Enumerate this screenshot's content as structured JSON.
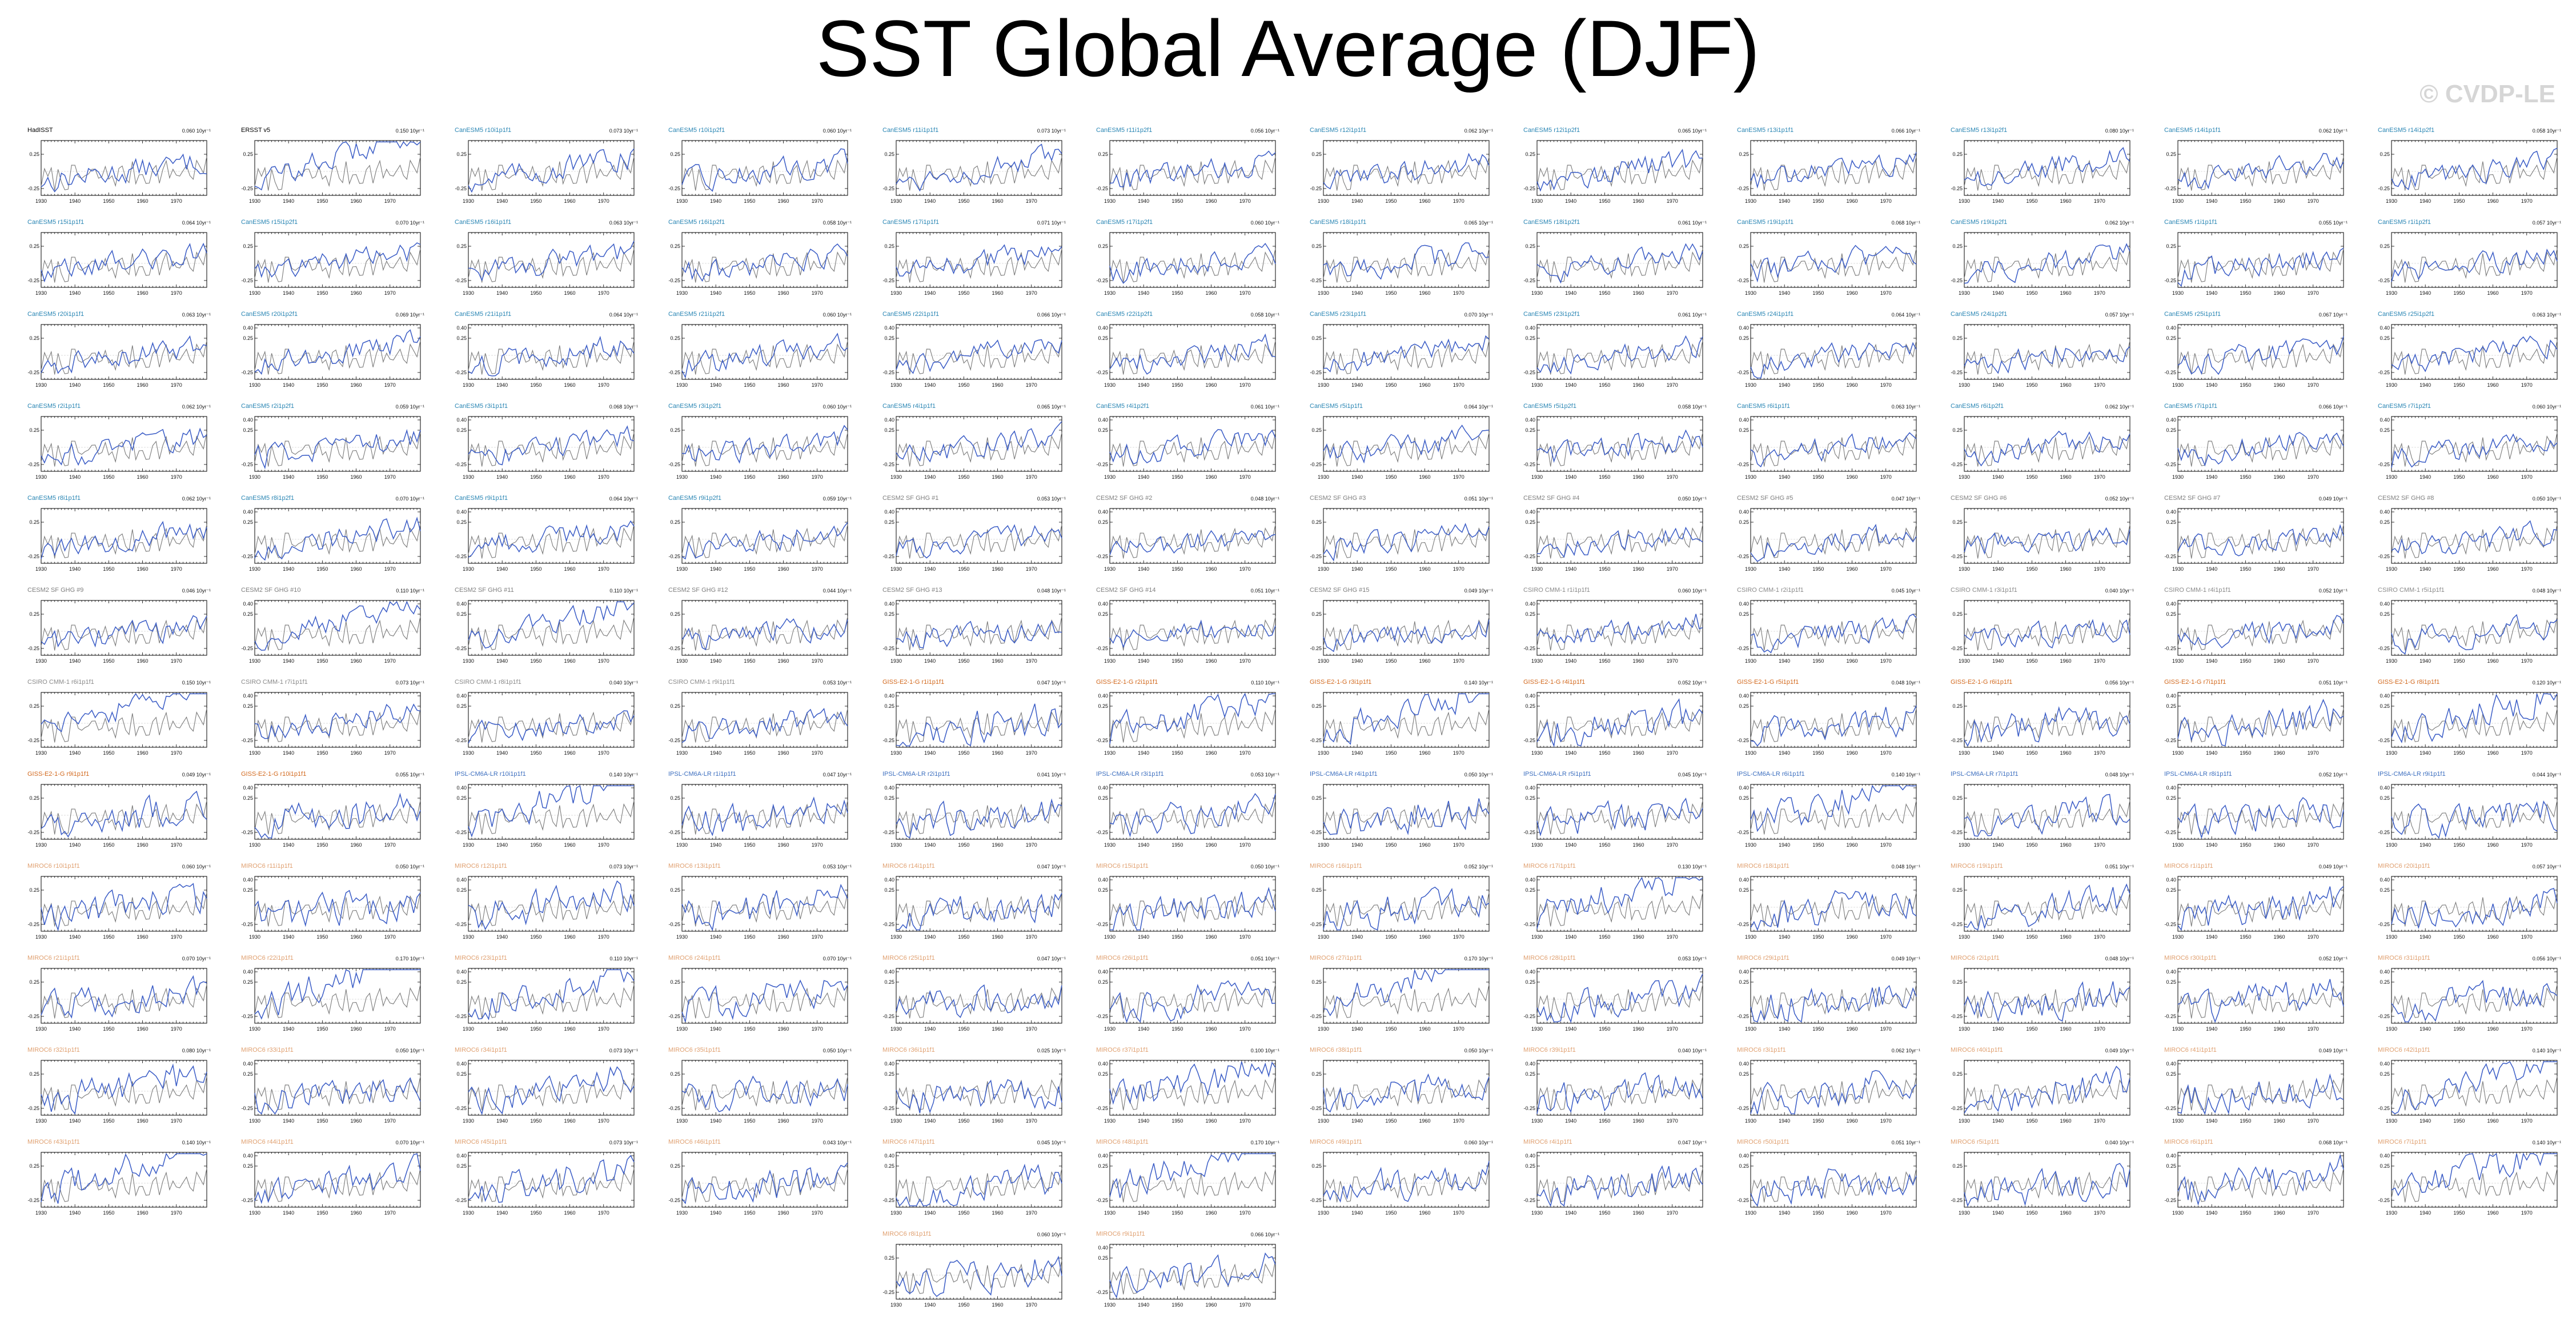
{
  "title": "SST Global Average (DJF)",
  "watermark": "© CVDP-LE",
  "colors": {
    "model_line": "#3a5cc6",
    "obs_line": "#7a7a7a",
    "axis": "#000000",
    "title_cesm1": "#2a86b4",
    "title_cesm2": "#7f7f7f",
    "title_canesm": "#2a86b4",
    "title_csiro": "#8a8a8a",
    "title_giss": "#d2691e",
    "title_ipsl": "#3d6fbf",
    "title_miroc": "#e0a070",
    "title_obs": "#000000"
  },
  "chart_data": {
    "type": "line",
    "grid": false,
    "xlim": [
      1930,
      1979
    ],
    "ylim": [
      -0.35,
      0.45
    ],
    "x_ticks": [
      "1930",
      "1940",
      "1950",
      "1960",
      "1970"
    ],
    "y_ticks_default": [
      "0.25",
      "-0.25"
    ],
    "y_ticks_wide": [
      "0.40",
      "0.25",
      "-0.25"
    ],
    "panels": [
      {
        "title": "HadISST",
        "group": "obs",
        "trend": "0.060 10yr⁻¹"
      },
      {
        "title": "ERSST v5",
        "group": "obs",
        "trend": "0.150 10yr⁻¹"
      },
      {
        "title": "CanESM5 r10i1p1f1",
        "group": "canesm",
        "trend": "0.073 10yr⁻¹"
      },
      {
        "title": "CanESM5 r10i1p2f1",
        "group": "canesm",
        "trend": "0.060 10yr⁻¹"
      },
      {
        "title": "CanESM5 r11i1p1f1",
        "group": "canesm",
        "trend": "0.073 10yr⁻¹"
      },
      {
        "title": "CanESM5 r11i1p2f1",
        "group": "canesm",
        "trend": "0.056 10yr⁻¹"
      },
      {
        "title": "CanESM5 r12i1p1f1",
        "group": "canesm",
        "trend": "0.062 10yr⁻¹"
      },
      {
        "title": "CanESM5 r12i1p2f1",
        "group": "canesm",
        "trend": "0.065 10yr⁻¹"
      },
      {
        "title": "CanESM5 r13i1p1f1",
        "group": "canesm",
        "trend": "0.066 10yr⁻¹"
      },
      {
        "title": "CanESM5 r13i1p2f1",
        "group": "canesm",
        "trend": "0.080 10yr⁻¹"
      },
      {
        "title": "CanESM5 r14i1p1f1",
        "group": "canesm",
        "trend": "0.062 10yr⁻¹"
      },
      {
        "title": "CanESM5 r14i1p2f1",
        "group": "canesm",
        "trend": "0.058 10yr⁻¹"
      },
      {
        "title": "CanESM5 r15i1p1f1",
        "group": "canesm",
        "trend": "0.064 10yr⁻¹"
      },
      {
        "title": "CanESM5 r15i1p2f1",
        "group": "canesm",
        "trend": "0.070 10yr⁻¹"
      },
      {
        "title": "CanESM5 r16i1p1f1",
        "group": "canesm",
        "trend": "0.063 10yr⁻¹"
      },
      {
        "title": "CanESM5 r16i1p2f1",
        "group": "canesm",
        "trend": "0.058 10yr⁻¹"
      },
      {
        "title": "CanESM5 r17i1p1f1",
        "group": "canesm",
        "trend": "0.071 10yr⁻¹"
      },
      {
        "title": "CanESM5 r17i1p2f1",
        "group": "canesm",
        "trend": "0.060 10yr⁻¹"
      },
      {
        "title": "CanESM5 r18i1p1f1",
        "group": "canesm",
        "trend": "0.065 10yr⁻¹"
      },
      {
        "title": "CanESM5 r18i1p2f1",
        "group": "canesm",
        "trend": "0.061 10yr⁻¹"
      },
      {
        "title": "CanESM5 r19i1p1f1",
        "group": "canesm",
        "trend": "0.068 10yr⁻¹"
      },
      {
        "title": "CanESM5 r19i1p2f1",
        "group": "canesm",
        "trend": "0.062 10yr⁻¹"
      },
      {
        "title": "CanESM5 r1i1p1f1",
        "group": "canesm",
        "trend": "0.055 10yr⁻¹"
      },
      {
        "title": "CanESM5 r1i1p2f1",
        "group": "canesm",
        "trend": "0.057 10yr⁻¹"
      },
      {
        "title": "CanESM5 r20i1p1f1",
        "group": "canesm",
        "trend": "0.063 10yr⁻¹"
      },
      {
        "title": "CanESM5 r20i1p2f1",
        "group": "canesm",
        "trend": "0.069 10yr⁻¹"
      },
      {
        "title": "CanESM5 r21i1p1f1",
        "group": "canesm",
        "trend": "0.064 10yr⁻¹"
      },
      {
        "title": "CanESM5 r21i1p2f1",
        "group": "canesm",
        "trend": "0.060 10yr⁻¹"
      },
      {
        "title": "CanESM5 r22i1p1f1",
        "group": "canesm",
        "trend": "0.066 10yr⁻¹"
      },
      {
        "title": "CanESM5 r22i1p2f1",
        "group": "canesm",
        "trend": "0.058 10yr⁻¹"
      },
      {
        "title": "CanESM5 r23i1p1f1",
        "group": "canesm",
        "trend": "0.070 10yr⁻¹"
      },
      {
        "title": "CanESM5 r23i1p2f1",
        "group": "canesm",
        "trend": "0.061 10yr⁻¹"
      },
      {
        "title": "CanESM5 r24i1p1f1",
        "group": "canesm",
        "trend": "0.064 10yr⁻¹"
      },
      {
        "title": "CanESM5 r24i1p2f1",
        "group": "canesm",
        "trend": "0.057 10yr⁻¹"
      },
      {
        "title": "CanESM5 r25i1p1f1",
        "group": "canesm",
        "trend": "0.067 10yr⁻¹"
      },
      {
        "title": "CanESM5 r25i1p2f1",
        "group": "canesm",
        "trend": "0.063 10yr⁻¹"
      },
      {
        "title": "CanESM5 r2i1p1f1",
        "group": "canesm",
        "trend": "0.062 10yr⁻¹"
      },
      {
        "title": "CanESM5 r2i1p2f1",
        "group": "canesm",
        "trend": "0.059 10yr⁻¹"
      },
      {
        "title": "CanESM5 r3i1p1f1",
        "group": "canesm",
        "trend": "0.068 10yr⁻¹"
      },
      {
        "title": "CanESM5 r3i1p2f1",
        "group": "canesm",
        "trend": "0.060 10yr⁻¹"
      },
      {
        "title": "CanESM5 r4i1p1f1",
        "group": "canesm",
        "trend": "0.065 10yr⁻¹"
      },
      {
        "title": "CanESM5 r4i1p2f1",
        "group": "canesm",
        "trend": "0.061 10yr⁻¹"
      },
      {
        "title": "CanESM5 r5i1p1f1",
        "group": "canesm",
        "trend": "0.064 10yr⁻¹"
      },
      {
        "title": "CanESM5 r5i1p2f1",
        "group": "canesm",
        "trend": "0.058 10yr⁻¹"
      },
      {
        "title": "CanESM5 r6i1p1f1",
        "group": "canesm",
        "trend": "0.063 10yr⁻¹"
      },
      {
        "title": "CanESM5 r6i1p2f1",
        "group": "canesm",
        "trend": "0.062 10yr⁻¹"
      },
      {
        "title": "CanESM5 r7i1p1f1",
        "group": "canesm",
        "trend": "0.066 10yr⁻¹"
      },
      {
        "title": "CanESM5 r7i1p2f1",
        "group": "canesm",
        "trend": "0.060 10yr⁻¹"
      },
      {
        "title": "CanESM5 r8i1p1f1",
        "group": "canesm",
        "trend": "0.062 10yr⁻¹"
      },
      {
        "title": "CanESM5 r8i1p2f1",
        "group": "canesm",
        "trend": "0.070 10yr⁻¹"
      },
      {
        "title": "CanESM5 r9i1p1f1",
        "group": "canesm",
        "trend": "0.064 10yr⁻¹"
      },
      {
        "title": "CanESM5 r9i1p2f1",
        "group": "canesm",
        "trend": "0.059 10yr⁻¹"
      },
      {
        "title": "CESM2 SF GHG #1",
        "group": "cesm2",
        "trend": "0.053 10yr⁻¹"
      },
      {
        "title": "CESM2 SF GHG #2",
        "group": "cesm2",
        "trend": "0.048 10yr⁻¹"
      },
      {
        "title": "CESM2 SF GHG #3",
        "group": "cesm2",
        "trend": "0.051 10yr⁻¹"
      },
      {
        "title": "CESM2 SF GHG #4",
        "group": "cesm2",
        "trend": "0.050 10yr⁻¹"
      },
      {
        "title": "CESM2 SF GHG #5",
        "group": "cesm2",
        "trend": "0.047 10yr⁻¹"
      },
      {
        "title": "CESM2 SF GHG #6",
        "group": "cesm2",
        "trend": "0.052 10yr⁻¹"
      },
      {
        "title": "CESM2 SF GHG #7",
        "group": "cesm2",
        "trend": "0.049 10yr⁻¹"
      },
      {
        "title": "CESM2 SF GHG #8",
        "group": "cesm2",
        "trend": "0.050 10yr⁻¹"
      },
      {
        "title": "CESM2 SF GHG #9",
        "group": "cesm2",
        "trend": "0.046 10yr⁻¹"
      },
      {
        "title": "CESM2 SF GHG #10",
        "group": "cesm2",
        "trend": "0.110 10yr⁻¹"
      },
      {
        "title": "CESM2 SF GHG #11",
        "group": "cesm2",
        "trend": "0.110 10yr⁻¹"
      },
      {
        "title": "CESM2 SF GHG #12",
        "group": "cesm2",
        "trend": "0.044 10yr⁻¹"
      },
      {
        "title": "CESM2 SF GHG #13",
        "group": "cesm2",
        "trend": "0.048 10yr⁻¹"
      },
      {
        "title": "CESM2 SF GHG #14",
        "group": "cesm2",
        "trend": "0.051 10yr⁻¹"
      },
      {
        "title": "CESM2 SF GHG #15",
        "group": "cesm2",
        "trend": "0.049 10yr⁻¹"
      },
      {
        "title": "CSIRO CMM-1 r1i1p1f1",
        "group": "csiro",
        "trend": "0.060 10yr⁻¹"
      },
      {
        "title": "CSIRO CMM-1 r2i1p1f1",
        "group": "csiro",
        "trend": "0.045 10yr⁻¹"
      },
      {
        "title": "CSIRO CMM-1 r3i1p1f1",
        "group": "csiro",
        "trend": "0.040 10yr⁻¹"
      },
      {
        "title": "CSIRO CMM-1 r4i1p1f1",
        "group": "csiro",
        "trend": "0.052 10yr⁻¹"
      },
      {
        "title": "CSIRO CMM-1 r5i1p1f1",
        "group": "csiro",
        "trend": "0.048 10yr⁻¹"
      },
      {
        "title": "CSIRO CMM-1 r6i1p1f1",
        "group": "csiro",
        "trend": "0.150 10yr⁻¹"
      },
      {
        "title": "CSIRO CMM-1 r7i1p1f1",
        "group": "csiro",
        "trend": "0.073 10yr⁻¹"
      },
      {
        "title": "CSIRO CMM-1 r8i1p1f1",
        "group": "csiro",
        "trend": "0.040 10yr⁻¹"
      },
      {
        "title": "CSIRO CMM-1 r9i1p1f1",
        "group": "csiro",
        "trend": "0.053 10yr⁻¹"
      },
      {
        "title": "GISS-E2-1-G r1i1p1f1",
        "group": "giss",
        "trend": "0.047 10yr⁻¹"
      },
      {
        "title": "GISS-E2-1-G r2i1p1f1",
        "group": "giss",
        "trend": "0.110 10yr⁻¹"
      },
      {
        "title": "GISS-E2-1-G r3i1p1f1",
        "group": "giss",
        "trend": "0.140 10yr⁻¹"
      },
      {
        "title": "GISS-E2-1-G r4i1p1f1",
        "group": "giss",
        "trend": "0.052 10yr⁻¹"
      },
      {
        "title": "GISS-E2-1-G r5i1p1f1",
        "group": "giss",
        "trend": "0.048 10yr⁻¹"
      },
      {
        "title": "GISS-E2-1-G r6i1p1f1",
        "group": "giss",
        "trend": "0.056 10yr⁻¹"
      },
      {
        "title": "GISS-E2-1-G r7i1p1f1",
        "group": "giss",
        "trend": "0.051 10yr⁻¹"
      },
      {
        "title": "GISS-E2-1-G r8i1p1f1",
        "group": "giss",
        "trend": "0.120 10yr⁻¹"
      },
      {
        "title": "GISS-E2-1-G r9i1p1f1",
        "group": "giss",
        "trend": "0.049 10yr⁻¹"
      },
      {
        "title": "GISS-E2-1-G r10i1p1f1",
        "group": "giss",
        "trend": "0.055 10yr⁻¹"
      },
      {
        "title": "IPSL-CM6A-LR r10i1p1f1",
        "group": "ipsl",
        "trend": "0.140 10yr⁻¹"
      },
      {
        "title": "IPSL-CM6A-LR r1i1p1f1",
        "group": "ipsl",
        "trend": "0.047 10yr⁻¹"
      },
      {
        "title": "IPSL-CM6A-LR r2i1p1f1",
        "group": "ipsl",
        "trend": "0.041 10yr⁻¹"
      },
      {
        "title": "IPSL-CM6A-LR r3i1p1f1",
        "group": "ipsl",
        "trend": "0.053 10yr⁻¹"
      },
      {
        "title": "IPSL-CM6A-LR r4i1p1f1",
        "group": "ipsl",
        "trend": "0.050 10yr⁻¹"
      },
      {
        "title": "IPSL-CM6A-LR r5i1p1f1",
        "group": "ipsl",
        "trend": "0.045 10yr⁻¹"
      },
      {
        "title": "IPSL-CM6A-LR r6i1p1f1",
        "group": "ipsl",
        "trend": "0.140 10yr⁻¹"
      },
      {
        "title": "IPSL-CM6A-LR r7i1p1f1",
        "group": "ipsl",
        "trend": "0.048 10yr⁻¹"
      },
      {
        "title": "IPSL-CM6A-LR r8i1p1f1",
        "group": "ipsl",
        "trend": "0.052 10yr⁻¹"
      },
      {
        "title": "IPSL-CM6A-LR r9i1p1f1",
        "group": "ipsl",
        "trend": "0.044 10yr⁻¹"
      },
      {
        "title": "MIROC6 r10i1p1f1",
        "group": "miroc",
        "trend": "0.060 10yr⁻¹"
      },
      {
        "title": "MIROC6 r11i1p1f1",
        "group": "miroc",
        "trend": "0.050 10yr⁻¹"
      },
      {
        "title": "MIROC6 r12i1p1f1",
        "group": "miroc",
        "trend": "0.073 10yr⁻¹"
      },
      {
        "title": "MIROC6 r13i1p1f1",
        "group": "miroc",
        "trend": "0.053 10yr⁻¹"
      },
      {
        "title": "MIROC6 r14i1p1f1",
        "group": "miroc",
        "trend": "0.047 10yr⁻¹"
      },
      {
        "title": "MIROC6 r15i1p1f1",
        "group": "miroc",
        "trend": "0.050 10yr⁻¹"
      },
      {
        "title": "MIROC6 r16i1p1f1",
        "group": "miroc",
        "trend": "0.052 10yr⁻¹"
      },
      {
        "title": "MIROC6 r17i1p1f1",
        "group": "miroc",
        "trend": "0.130 10yr⁻¹"
      },
      {
        "title": "MIROC6 r18i1p1f1",
        "group": "miroc",
        "trend": "0.048 10yr⁻¹"
      },
      {
        "title": "MIROC6 r19i1p1f1",
        "group": "miroc",
        "trend": "0.051 10yr⁻¹"
      },
      {
        "title": "MIROC6 r1i1p1f1",
        "group": "miroc",
        "trend": "0.049 10yr⁻¹"
      },
      {
        "title": "MIROC6 r20i1p1f1",
        "group": "miroc",
        "trend": "0.057 10yr⁻¹"
      },
      {
        "title": "MIROC6 r21i1p1f1",
        "group": "miroc",
        "trend": "0.070 10yr⁻¹"
      },
      {
        "title": "MIROC6 r22i1p1f1",
        "group": "miroc",
        "trend": "0.170 10yr⁻¹"
      },
      {
        "title": "MIROC6 r23i1p1f1",
        "group": "miroc",
        "trend": "0.110 10yr⁻¹"
      },
      {
        "title": "MIROC6 r24i1p1f1",
        "group": "miroc",
        "trend": "0.070 10yr⁻¹"
      },
      {
        "title": "MIROC6 r25i1p1f1",
        "group": "miroc",
        "trend": "0.047 10yr⁻¹"
      },
      {
        "title": "MIROC6 r26i1p1f1",
        "group": "miroc",
        "trend": "0.051 10yr⁻¹"
      },
      {
        "title": "MIROC6 r27i1p1f1",
        "group": "miroc",
        "trend": "0.170 10yr⁻¹"
      },
      {
        "title": "MIROC6 r28i1p1f1",
        "group": "miroc",
        "trend": "0.053 10yr⁻¹"
      },
      {
        "title": "MIROC6 r29i1p1f1",
        "group": "miroc",
        "trend": "0.049 10yr⁻¹"
      },
      {
        "title": "MIROC6 r2i1p1f1",
        "group": "miroc",
        "trend": "0.048 10yr⁻¹"
      },
      {
        "title": "MIROC6 r30i1p1f1",
        "group": "miroc",
        "trend": "0.052 10yr⁻¹"
      },
      {
        "title": "MIROC6 r31i1p1f1",
        "group": "miroc",
        "trend": "0.056 10yr⁻¹"
      },
      {
        "title": "MIROC6 r32i1p1f1",
        "group": "miroc",
        "trend": "0.080 10yr⁻¹"
      },
      {
        "title": "MIROC6 r33i1p1f1",
        "group": "miroc",
        "trend": "0.050 10yr⁻¹"
      },
      {
        "title": "MIROC6 r34i1p1f1",
        "group": "miroc",
        "trend": "0.073 10yr⁻¹"
      },
      {
        "title": "MIROC6 r35i1p1f1",
        "group": "miroc",
        "trend": "0.050 10yr⁻¹"
      },
      {
        "title": "MIROC6 r36i1p1f1",
        "group": "miroc",
        "trend": "0.025 10yr⁻¹"
      },
      {
        "title": "MIROC6 r37i1p1f1",
        "group": "miroc",
        "trend": "0.100 10yr⁻¹"
      },
      {
        "title": "MIROC6 r38i1p1f1",
        "group": "miroc",
        "trend": "0.050 10yr⁻¹"
      },
      {
        "title": "MIROC6 r39i1p1f1",
        "group": "miroc",
        "trend": "0.040 10yr⁻¹"
      },
      {
        "title": "MIROC6 r3i1p1f1",
        "group": "miroc",
        "trend": "0.062 10yr⁻¹"
      },
      {
        "title": "MIROC6 r40i1p1f1",
        "group": "miroc",
        "trend": "0.049 10yr⁻¹"
      },
      {
        "title": "MIROC6 r41i1p1f1",
        "group": "miroc",
        "trend": "0.049 10yr⁻¹"
      },
      {
        "title": "MIROC6 r42i1p1f1",
        "group": "miroc",
        "trend": "0.140 10yr⁻¹"
      },
      {
        "title": "MIROC6 r43i1p1f1",
        "group": "miroc",
        "trend": "0.140 10yr⁻¹"
      },
      {
        "title": "MIROC6 r44i1p1f1",
        "group": "miroc",
        "trend": "0.070 10yr⁻¹"
      },
      {
        "title": "MIROC6 r45i1p1f1",
        "group": "miroc",
        "trend": "0.073 10yr⁻¹"
      },
      {
        "title": "MIROC6 r46i1p1f1",
        "group": "miroc",
        "trend": "0.043 10yr⁻¹"
      },
      {
        "title": "MIROC6 r47i1p1f1",
        "group": "miroc",
        "trend": "0.045 10yr⁻¹"
      },
      {
        "title": "MIROC6 r48i1p1f1",
        "group": "miroc",
        "trend": "0.170 10yr⁻¹"
      },
      {
        "title": "MIROC6 r49i1p1f1",
        "group": "miroc",
        "trend": "0.060 10yr⁻¹"
      },
      {
        "title": "MIROC6 r4i1p1f1",
        "group": "miroc",
        "trend": "0.047 10yr⁻¹"
      },
      {
        "title": "MIROC6 r50i1p1f1",
        "group": "miroc",
        "trend": "0.051 10yr⁻¹"
      },
      {
        "title": "MIROC6 r5i1p1f1",
        "group": "miroc",
        "trend": "0.040 10yr⁻¹"
      },
      {
        "title": "MIROC6 r6i1p1f1",
        "group": "miroc",
        "trend": "0.068 10yr⁻¹"
      },
      {
        "title": "MIROC6 r7i1p1f1",
        "group": "miroc",
        "trend": "0.140 10yr⁻¹"
      },
      {
        "title": "MIROC6 r8i1p1f1",
        "group": "miroc",
        "trend": "0.060 10yr⁻¹"
      },
      {
        "title": "MIROC6 r9i1p1f1",
        "group": "miroc",
        "trend": "0.066 10yr⁻¹"
      }
    ]
  }
}
